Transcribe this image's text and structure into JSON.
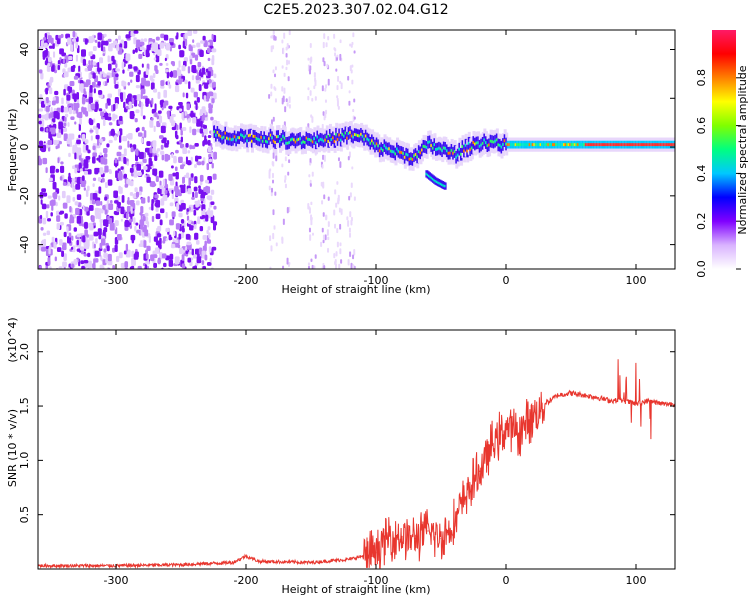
{
  "title": "C2E5.2023.307.02.04.G12",
  "chart_data": [
    {
      "type": "heatmap",
      "xlabel": "Height of straight line (km)",
      "ylabel": "Frequency (Hz)",
      "xlim": [
        -360,
        130
      ],
      "ylim": [
        -50,
        48
      ],
      "xticks": [
        -300,
        -200,
        -100,
        0,
        100
      ],
      "yticks": [
        -40,
        -20,
        0,
        20,
        40
      ],
      "colorbar": {
        "label": "Normalized spectral amplitude",
        "range": [
          0.0,
          1.0
        ],
        "ticks": [
          "0.0",
          "0.2",
          "0.4",
          "0.6",
          "0.8"
        ],
        "colors": [
          "#ffffff",
          "#d9b3ff",
          "#8000ff",
          "#0000ff",
          "#00c8ff",
          "#00ff80",
          "#80ff00",
          "#ffff00",
          "#ff8000",
          "#ff0000",
          "#ff1a66"
        ]
      },
      "ridge": {
        "x": [
          -225,
          -200,
          -170,
          -140,
          -120,
          -110,
          -100,
          -90,
          -80,
          -70,
          -60,
          -50,
          -40,
          -30,
          -20,
          -10,
          0,
          20,
          50,
          80,
          110,
          130
        ],
        "y": [
          5,
          4,
          3,
          3,
          5,
          4,
          0,
          -1,
          -3,
          -4,
          1,
          -1,
          -3,
          0,
          2,
          2,
          1,
          1,
          1,
          1,
          1,
          1
        ]
      },
      "branch": {
        "x": [
          -62,
          -55,
          -48
        ],
        "y": [
          -11,
          -14,
          -16
        ]
      }
    },
    {
      "type": "line",
      "xlabel": "Height of straight line (km)",
      "ylabel": "SNR (10 * v/v)",
      "y_multiplier": "(x10^4)",
      "xlim": [
        -360,
        130
      ],
      "ylim": [
        0,
        2.2
      ],
      "xticks": [
        -300,
        -200,
        -100,
        0,
        100
      ],
      "yticks": [
        0.5,
        1.0,
        1.5,
        2.0
      ],
      "series": [
        {
          "color": "#e8362e",
          "x": [
            -360,
            -300,
            -250,
            -210,
            -200,
            -190,
            -150,
            -120,
            -100,
            -90,
            -80,
            -70,
            -60,
            -50,
            -40,
            -30,
            -20,
            -10,
            0,
            10,
            20,
            30,
            40,
            50,
            60,
            70,
            80,
            90,
            100,
            110,
            120,
            130
          ],
          "y": [
            0.03,
            0.03,
            0.04,
            0.06,
            0.12,
            0.07,
            0.06,
            0.09,
            0.15,
            0.3,
            0.3,
            0.28,
            0.35,
            0.28,
            0.42,
            0.7,
            0.9,
            1.15,
            1.3,
            1.25,
            1.4,
            1.52,
            1.6,
            1.62,
            1.6,
            1.58,
            1.55,
            1.55,
            1.52,
            1.55,
            1.52,
            1.52
          ]
        }
      ]
    }
  ]
}
